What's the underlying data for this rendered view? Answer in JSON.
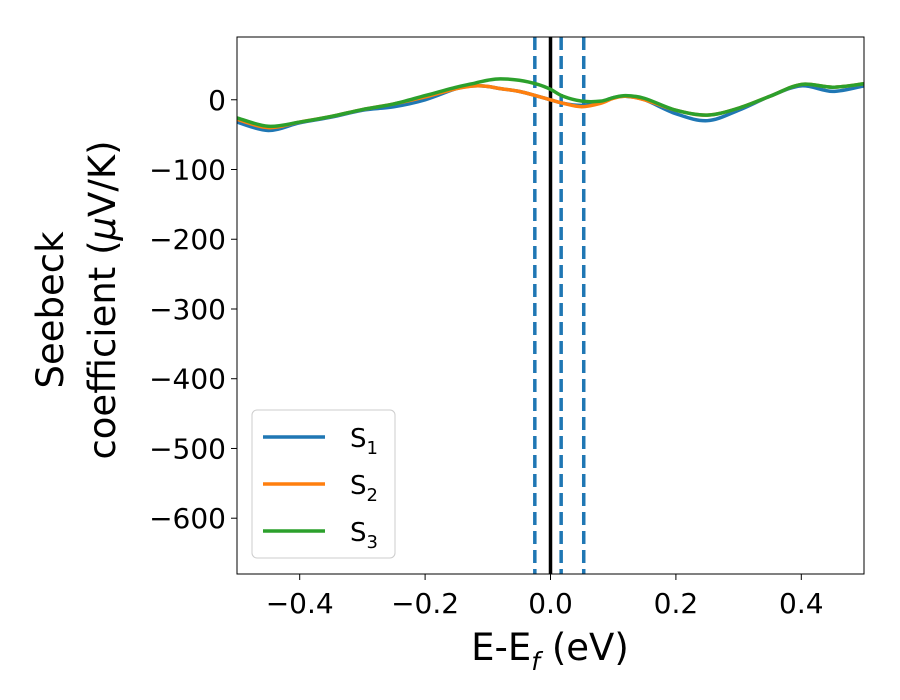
{
  "chart_data": {
    "type": "line",
    "xlabel": {
      "main": "E-E",
      "sub": "f",
      "unit": " (eV)"
    },
    "ylabel": {
      "line1": "Seebeck",
      "line2_prefix": "coefficient  (",
      "mu": "μ",
      "line2_suffix": "V/K)"
    },
    "xlim": [
      -0.5,
      0.5
    ],
    "ylim": [
      -680,
      90
    ],
    "xticks": [
      -0.4,
      -0.2,
      0.0,
      0.2,
      0.4
    ],
    "xtick_labels": [
      "−0.4",
      "−0.2",
      "0.0",
      "0.2",
      "0.4"
    ],
    "yticks": [
      0,
      -100,
      -200,
      -300,
      -400,
      -500,
      -600
    ],
    "ytick_labels": [
      "0",
      "−100",
      "−200",
      "−300",
      "−400",
      "−500",
      "−600"
    ],
    "grid": false,
    "legend_position": "lower-left",
    "reference_lines": {
      "solid": {
        "x": 0.0,
        "color": "#000000"
      },
      "dashed": {
        "x": [
          -0.025,
          0.017,
          0.053
        ],
        "color": "#1f77b4"
      }
    },
    "series": [
      {
        "name": "S",
        "sub": "1",
        "color": "#1f77b4",
        "x": [
          -0.5,
          -0.45,
          -0.4,
          -0.35,
          -0.3,
          -0.25,
          -0.2,
          -0.15,
          -0.12,
          -0.1,
          -0.08,
          -0.05,
          -0.02,
          0.0,
          0.02,
          0.05,
          0.08,
          0.1,
          0.12,
          0.15,
          0.2,
          0.25,
          0.3,
          0.35,
          0.4,
          0.45,
          0.5
        ],
        "y": [
          -32,
          -44,
          -33,
          -25,
          -15,
          -10,
          0,
          16,
          20,
          19,
          16,
          12,
          5,
          0,
          -5,
          -8,
          -3,
          3,
          5,
          0,
          -20,
          -30,
          -15,
          5,
          20,
          12,
          20
        ]
      },
      {
        "name": "S",
        "sub": "2",
        "color": "#ff7f0e",
        "x": [
          -0.5,
          -0.45,
          -0.4,
          -0.35,
          -0.3,
          -0.25,
          -0.2,
          -0.15,
          -0.12,
          -0.1,
          -0.08,
          -0.05,
          -0.02,
          0.0,
          0.02,
          0.05,
          0.08,
          0.1,
          0.12,
          0.15,
          0.2,
          0.25,
          0.3,
          0.35,
          0.4,
          0.45,
          0.5
        ],
        "y": [
          -28,
          -40,
          -32,
          -24,
          -14,
          -6,
          4,
          16,
          20,
          19,
          16,
          12,
          5,
          0,
          -5,
          -10,
          -5,
          2,
          5,
          0,
          -15,
          -22,
          -12,
          5,
          22,
          18,
          23
        ]
      },
      {
        "name": "S",
        "sub": "3",
        "color": "#2ca02c",
        "x": [
          -0.5,
          -0.45,
          -0.4,
          -0.35,
          -0.3,
          -0.25,
          -0.2,
          -0.15,
          -0.12,
          -0.1,
          -0.08,
          -0.05,
          -0.02,
          0.0,
          0.02,
          0.05,
          0.08,
          0.1,
          0.12,
          0.15,
          0.2,
          0.25,
          0.3,
          0.35,
          0.4,
          0.45,
          0.5
        ],
        "y": [
          -26,
          -38,
          -32,
          -24,
          -14,
          -6,
          6,
          18,
          24,
          28,
          30,
          28,
          22,
          15,
          5,
          -2,
          -2,
          3,
          6,
          2,
          -15,
          -22,
          -12,
          5,
          22,
          18,
          23
        ]
      }
    ]
  }
}
